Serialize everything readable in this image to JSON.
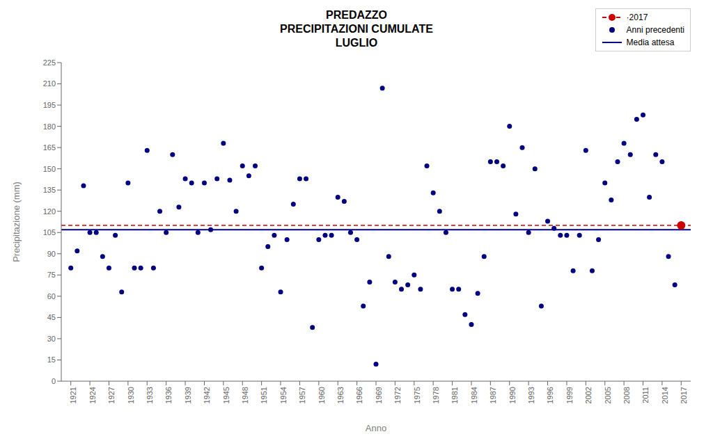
{
  "chart_data": {
    "type": "scatter",
    "title": "PREDAZZO\nPRECIPITAZIONI CUMULATE\nLUGLIO",
    "x_label": "Anno",
    "y_label": "Precipitazione (mm)",
    "xlim": [
      1919.5,
      2018.5
    ],
    "xticks": [
      1921,
      1924,
      1927,
      1930,
      1933,
      1936,
      1939,
      1942,
      1945,
      1948,
      1951,
      1954,
      1957,
      1960,
      1963,
      1966,
      1969,
      1972,
      1975,
      1978,
      1981,
      1984,
      1987,
      1990,
      1993,
      1996,
      1999,
      2002,
      2005,
      2008,
      2011,
      2014,
      2017
    ],
    "ylim": [
      0,
      225
    ],
    "yticks": [
      0,
      15,
      30,
      45,
      60,
      75,
      90,
      105,
      120,
      135,
      150,
      165,
      180,
      195,
      210,
      225
    ],
    "grid": false,
    "legend": "upper right",
    "series": [
      {
        "name": "·2017",
        "type": "scatter",
        "color": "#cc0000",
        "marker": "circle",
        "line_style": "dashed",
        "x": [
          2017
        ],
        "values": [
          110
        ]
      },
      {
        "name": "Anni precedenti",
        "type": "scatter",
        "color": "#000080",
        "marker": "circle",
        "x": [
          1921,
          1922,
          1923,
          1924,
          1925,
          1926,
          1927,
          1928,
          1929,
          1930,
          1931,
          1932,
          1933,
          1934,
          1935,
          1936,
          1937,
          1938,
          1939,
          1940,
          1941,
          1942,
          1943,
          1944,
          1945,
          1946,
          1947,
          1948,
          1949,
          1950,
          1951,
          1952,
          1953,
          1954,
          1955,
          1956,
          1957,
          1958,
          1959,
          1960,
          1961,
          1962,
          1963,
          1964,
          1965,
          1966,
          1967,
          1968,
          1969,
          1970,
          1971,
          1972,
          1973,
          1974,
          1975,
          1976,
          1977,
          1978,
          1979,
          1980,
          1981,
          1982,
          1983,
          1984,
          1985,
          1986,
          1987,
          1988,
          1989,
          1990,
          1991,
          1992,
          1993,
          1994,
          1995,
          1996,
          1997,
          1998,
          1999,
          2000,
          2001,
          2002,
          2003,
          2004,
          2005,
          2006,
          2007,
          2008,
          2009,
          2010,
          2011,
          2012,
          2013,
          2014,
          2015,
          2016
        ],
        "values": [
          80,
          92,
          138,
          105,
          105,
          88,
          80,
          103,
          63,
          140,
          80,
          80,
          163,
          80,
          120,
          105,
          160,
          123,
          143,
          140,
          105,
          140,
          107,
          143,
          168,
          142,
          120,
          152,
          145,
          152,
          80,
          95,
          103,
          63,
          100,
          125,
          143,
          143,
          38,
          100,
          103,
          103,
          130,
          127,
          105,
          100,
          53,
          70,
          12,
          207,
          88,
          70,
          65,
          68,
          75,
          65,
          152,
          133,
          120,
          105,
          65,
          65,
          47,
          40,
          62,
          88,
          155,
          155,
          152,
          180,
          118,
          165,
          105,
          150,
          53,
          113,
          108,
          103,
          103,
          78,
          103,
          163,
          78,
          100,
          140,
          128,
          155,
          168,
          160,
          185,
          188,
          130,
          160,
          155,
          88,
          68
        ]
      },
      {
        "name": "Media attesa",
        "type": "hline",
        "color": "#00008B",
        "line_style": "solid",
        "values": [
          107
        ]
      }
    ]
  }
}
